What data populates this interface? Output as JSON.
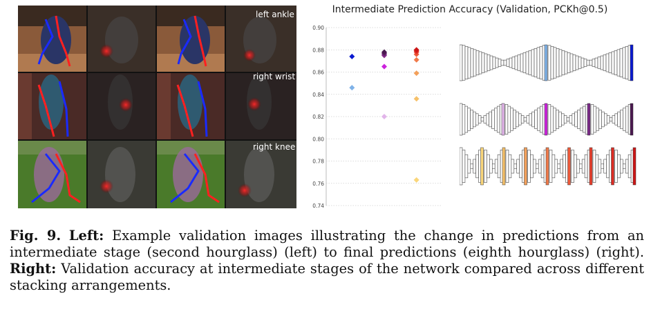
{
  "figure_rows": [
    {
      "label": "left ankle"
    },
    {
      "label": "right wrist"
    },
    {
      "label": "right knee"
    }
  ],
  "chart_data": {
    "type": "scatter",
    "title": "Intermediate Prediction Accuracy (Validation, PCKh@0.5)",
    "xlabel": "",
    "ylabel": "",
    "ylim": [
      0.74,
      0.9
    ],
    "yticks": [
      "0.90",
      "0.88",
      "0.86",
      "0.84",
      "0.82",
      "0.80",
      "0.78",
      "0.76",
      "0.74"
    ],
    "grid": true,
    "series": [
      {
        "color_scale": "blues",
        "x": 1,
        "values": [
          0.846,
          0.874
        ],
        "colors": [
          "#7fb2e8",
          "#0a1ad0"
        ]
      },
      {
        "color_scale": "purples",
        "x": 2,
        "values": [
          0.82,
          0.865,
          0.875,
          0.876,
          0.877,
          0.878
        ],
        "colors": [
          "#e2b5ea",
          "#cc22dd",
          "#8a2a8a",
          "#7a2a88",
          "#602060",
          "#4a1850"
        ]
      },
      {
        "color_scale": "oranges",
        "x": 3,
        "values": [
          0.763,
          0.836,
          0.859,
          0.871,
          0.876,
          0.878,
          0.879,
          0.88
        ],
        "colors": [
          "#fad67a",
          "#f6c16a",
          "#f3a05a",
          "#f07a4a",
          "#ee5a3a",
          "#e8402e",
          "#dd2a22",
          "#cc1616"
        ]
      }
    ]
  },
  "caption": {
    "fig": "Fig. 9.",
    "left_label": "Left:",
    "left_text": " Example validation images illustrating the change in predictions from an intermediate stage (second hourglass) (left) to final predictions (eighth hourglass) (right).",
    "right_label": "Right:",
    "right_text": " Validation accuracy at intermediate stages of the network compared across different stacking arrangements."
  },
  "arch_colors": {
    "row1": [
      "#7fb2e8",
      "#0a1ad0"
    ],
    "row2": [
      "#e2b5ea",
      "#cc22dd",
      "#7a2a88",
      "#4a1850"
    ],
    "row3": [
      "#fad67a",
      "#f6c16a",
      "#f3a05a",
      "#f07a4a",
      "#ee5a3a",
      "#e8402e",
      "#dd2a22",
      "#cc1616"
    ]
  }
}
